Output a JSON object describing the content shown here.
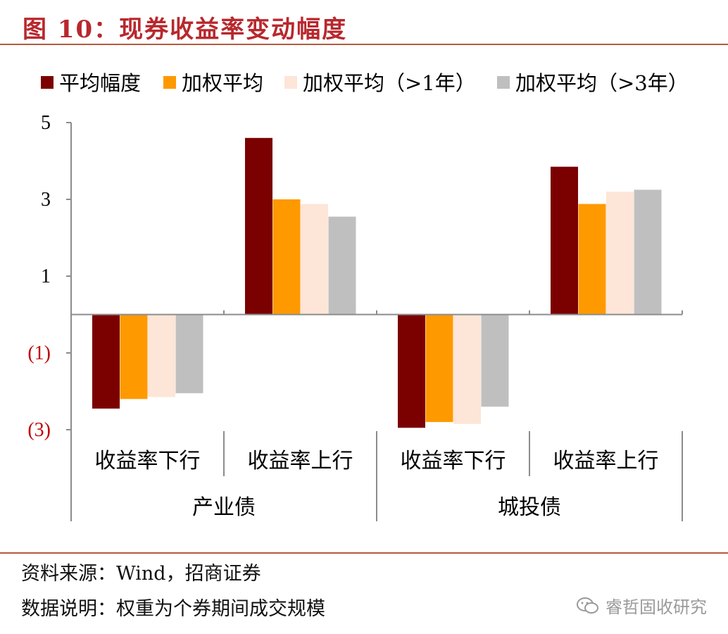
{
  "chart_title": "图 10：现券收益率变动幅度",
  "source_note": "资料来源：Wind，招商证券",
  "data_note": "数据说明：权重为个券期间成交规模",
  "watermark": "睿哲固收研究",
  "chart_data": {
    "type": "bar",
    "categories": [
      "收益率下行",
      "收益率上行",
      "收益率下行",
      "收益率上行"
    ],
    "groups": [
      {
        "label": "产业债",
        "span": [
          0,
          1
        ]
      },
      {
        "label": "城投债",
        "span": [
          2,
          3
        ]
      }
    ],
    "series": [
      {
        "name": "平均幅度",
        "color": "#7b0000",
        "values": [
          -2.45,
          4.6,
          -2.95,
          3.85
        ]
      },
      {
        "name": "加权平均",
        "color": "#ff9900",
        "values": [
          -2.2,
          3.0,
          -2.8,
          2.88
        ]
      },
      {
        "name": "加权平均（>1年）",
        "color": "#fde5d8",
        "values": [
          -2.15,
          2.88,
          -2.85,
          3.2
        ]
      },
      {
        "name": "加权平均（>3年）",
        "color": "#bfbfbf",
        "values": [
          -2.05,
          2.55,
          -2.4,
          3.25
        ]
      }
    ],
    "y_ticks": [
      {
        "value": 5,
        "label": "5",
        "color": "#000000"
      },
      {
        "value": 3,
        "label": "3",
        "color": "#000000"
      },
      {
        "value": 1,
        "label": "1",
        "color": "#000000"
      },
      {
        "value": -1,
        "label": "(1)",
        "color": "#c00000"
      },
      {
        "value": -3,
        "label": "(3)",
        "color": "#c00000"
      }
    ],
    "ylim": [
      -3,
      5
    ],
    "legend_position": "top",
    "grid": false
  }
}
